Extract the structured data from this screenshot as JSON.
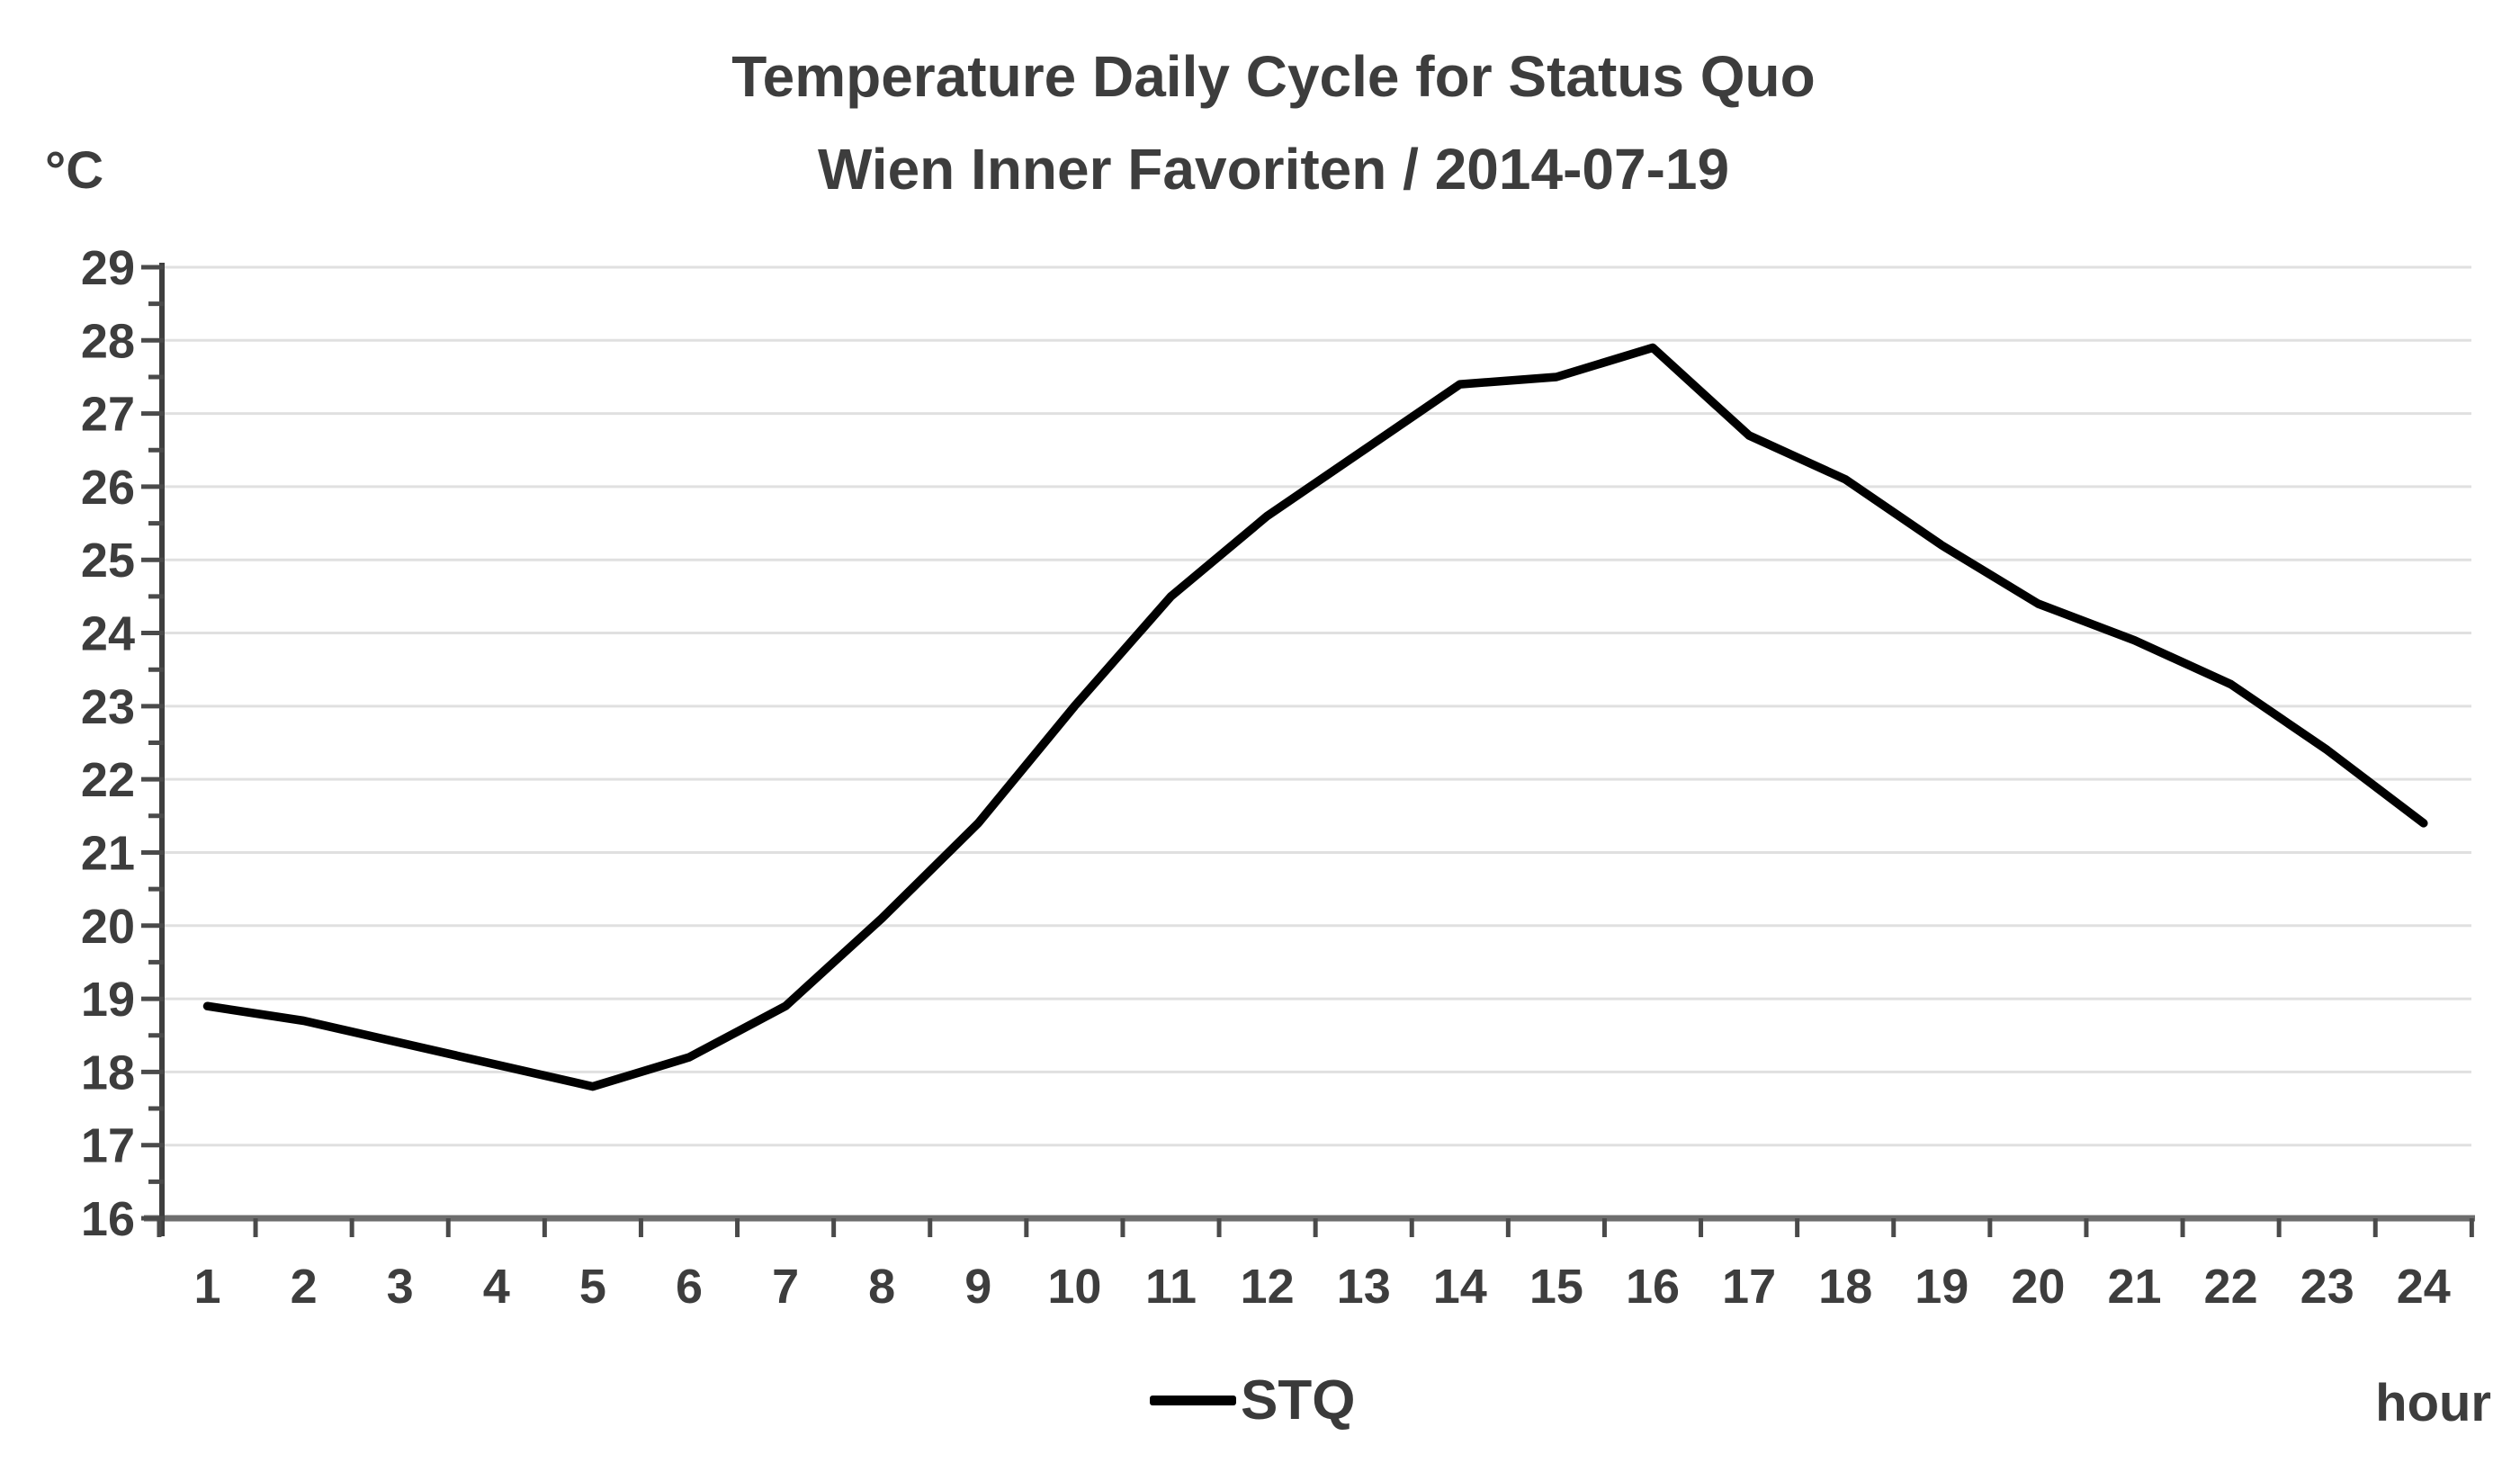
{
  "chart_data": {
    "type": "line",
    "title": "Temperature Daily Cycle for Status Quo",
    "subtitle": "Wien Inner Favoriten / 2014-07-19",
    "ylabel": "°C",
    "xlabel": "hour",
    "categories": [
      1,
      2,
      3,
      4,
      5,
      6,
      7,
      8,
      9,
      10,
      11,
      12,
      13,
      14,
      15,
      16,
      17,
      18,
      19,
      20,
      21,
      22,
      23,
      24
    ],
    "series": [
      {
        "name": "STQ",
        "color": "#000000",
        "values": [
          18.9,
          18.7,
          18.4,
          18.1,
          17.8,
          18.2,
          18.9,
          20.1,
          21.4,
          23.0,
          24.5,
          25.6,
          26.5,
          27.4,
          27.5,
          27.9,
          26.7,
          26.1,
          25.2,
          24.4,
          23.9,
          23.3,
          22.4,
          21.4
        ]
      }
    ],
    "ylim": [
      16,
      29
    ],
    "y_ticks": [
      16,
      17,
      18,
      19,
      20,
      21,
      22,
      23,
      24,
      25,
      26,
      27,
      28,
      29
    ],
    "y_minor_tick_step": 0.5,
    "grid": true,
    "legend_position": "bottom-center",
    "colors": {
      "line": "#000000",
      "grid": "#e0e0e0",
      "x_axis": "#6e6e6e",
      "y_axis": "#3f3f3f",
      "tick": "#4a4a4a",
      "text": "#3d3d3d",
      "background": "#ffffff"
    }
  }
}
